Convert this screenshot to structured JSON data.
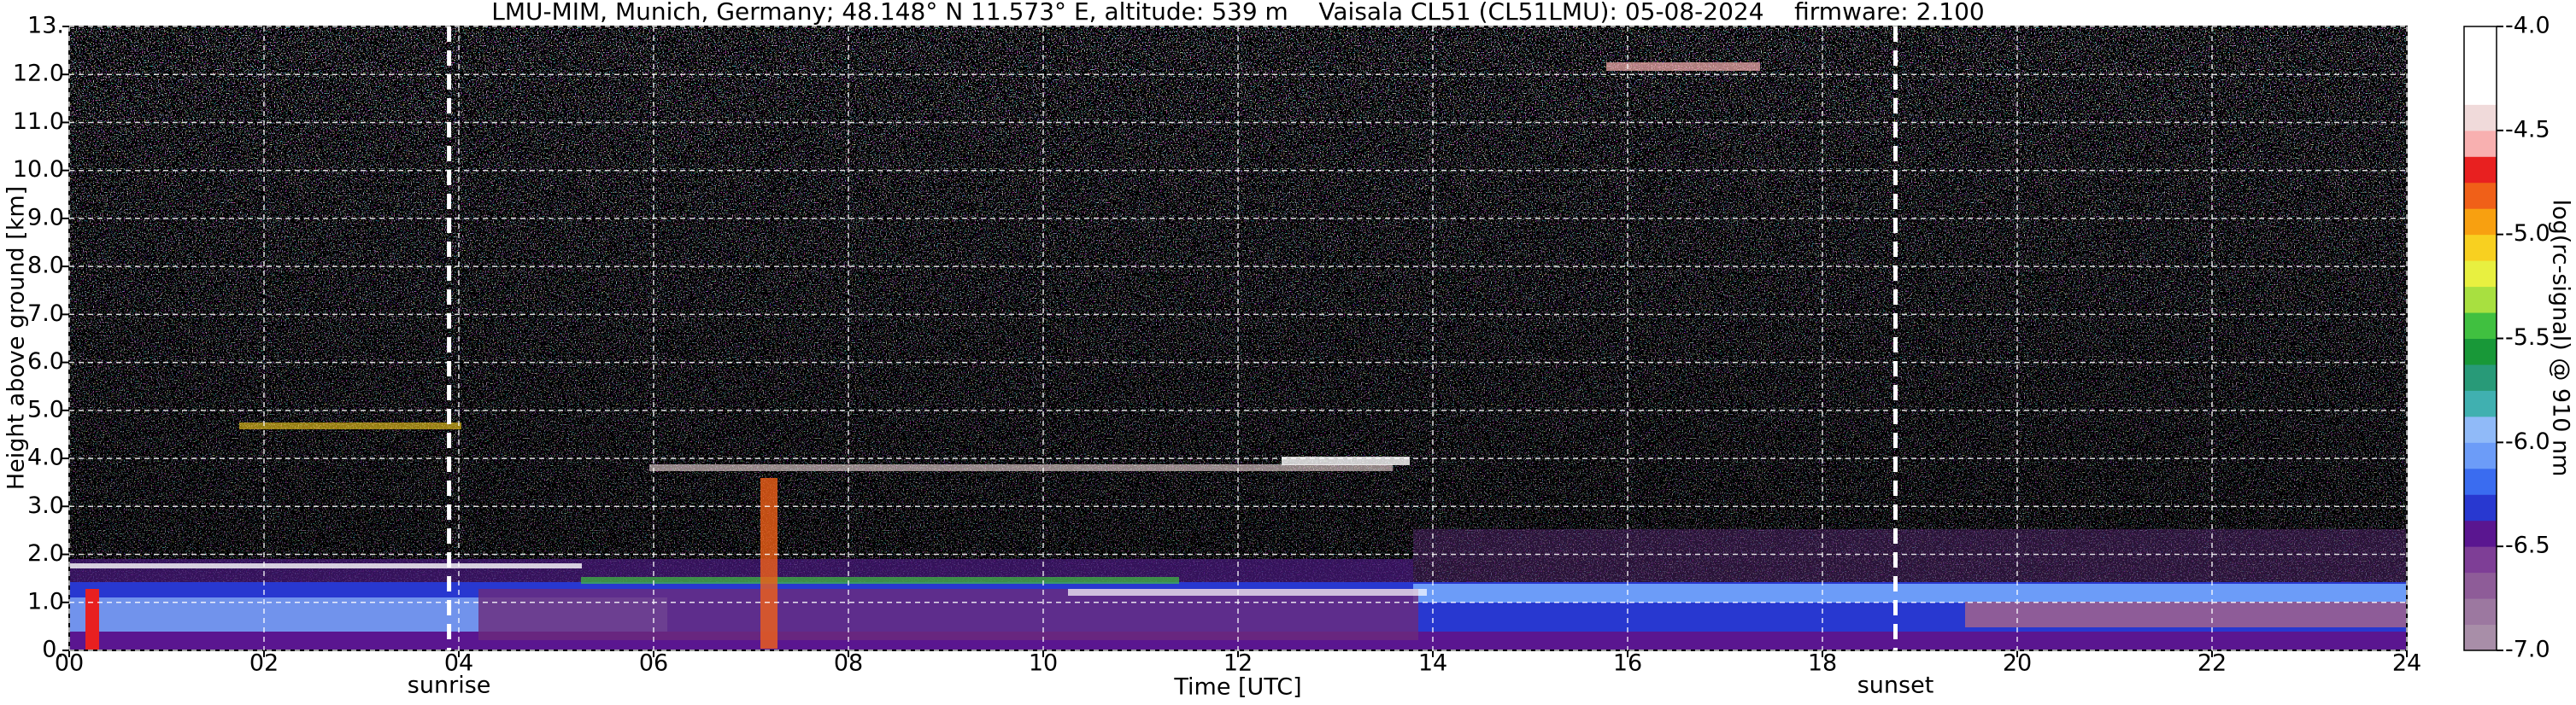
{
  "chart_data": {
    "type": "heatmap",
    "title": "LMU-MIM, Munich, Germany; 48.148° N 11.573° E, altitude: 539 m    Vaisala CL51 (CL51LMU): 05-08-2024    firmware: 2.100",
    "xlabel": "Time [UTC]",
    "ylabel": "Height above ground [km]",
    "xlim": [
      0,
      24
    ],
    "xticks": [
      {
        "value": 0,
        "label": "00"
      },
      {
        "value": 2,
        "label": "02"
      },
      {
        "value": 4,
        "label": "04"
      },
      {
        "value": 6,
        "label": "06"
      },
      {
        "value": 8,
        "label": "08"
      },
      {
        "value": 10,
        "label": "10"
      },
      {
        "value": 12,
        "label": "12"
      },
      {
        "value": 14,
        "label": "14"
      },
      {
        "value": 16,
        "label": "16"
      },
      {
        "value": 18,
        "label": "18"
      },
      {
        "value": 20,
        "label": "20"
      },
      {
        "value": 22,
        "label": "22"
      },
      {
        "value": 24,
        "label": "24"
      }
    ],
    "ylim": [
      0,
      13
    ],
    "yticks": [
      {
        "value": 0,
        "label": "0."
      },
      {
        "value": 1,
        "label": "1.0"
      },
      {
        "value": 2,
        "label": "2.0"
      },
      {
        "value": 3,
        "label": "3.0"
      },
      {
        "value": 4,
        "label": "4.0"
      },
      {
        "value": 5,
        "label": "5.0"
      },
      {
        "value": 6,
        "label": "6.0"
      },
      {
        "value": 7,
        "label": "7.0"
      },
      {
        "value": 8,
        "label": "8.0"
      },
      {
        "value": 9,
        "label": "9.0"
      },
      {
        "value": 10,
        "label": "10.0"
      },
      {
        "value": 11,
        "label": "11.0"
      },
      {
        "value": 12,
        "label": "12.0"
      },
      {
        "value": 13,
        "label": "13."
      }
    ],
    "grid": true,
    "annotations": [
      {
        "x": 3.9,
        "label": "sunrise"
      },
      {
        "x": 18.75,
        "label": "sunset"
      }
    ],
    "colorbar": {
      "label": "log(rc-signal) @ 910 nm",
      "lim": [
        -7,
        -4
      ],
      "ticks": [
        {
          "value": -7,
          "label": "-7.0"
        },
        {
          "value": -6.5,
          "label": "-6.5"
        },
        {
          "value": -6,
          "label": "-6.0"
        },
        {
          "value": -5.5,
          "label": "-5.5"
        },
        {
          "value": -5,
          "label": "-5.0"
        },
        {
          "value": -4.5,
          "label": "-4.5"
        },
        {
          "value": -4,
          "label": "-4.0"
        }
      ],
      "colors": [
        "#a88ea8",
        "#9c78a0",
        "#8e5c98",
        "#7e3e96",
        "#5a1690",
        "#2838d0",
        "#3a6cf0",
        "#6c9cf8",
        "#90baf8",
        "#40b0b0",
        "#289a78",
        "#189838",
        "#40c040",
        "#a8e040",
        "#e8f040",
        "#f8d020",
        "#f8a010",
        "#f06018",
        "#e82020",
        "#f8b0b0",
        "#f0dada",
        "#ffffff",
        "#ffffff",
        "#ffffff"
      ]
    }
  }
}
